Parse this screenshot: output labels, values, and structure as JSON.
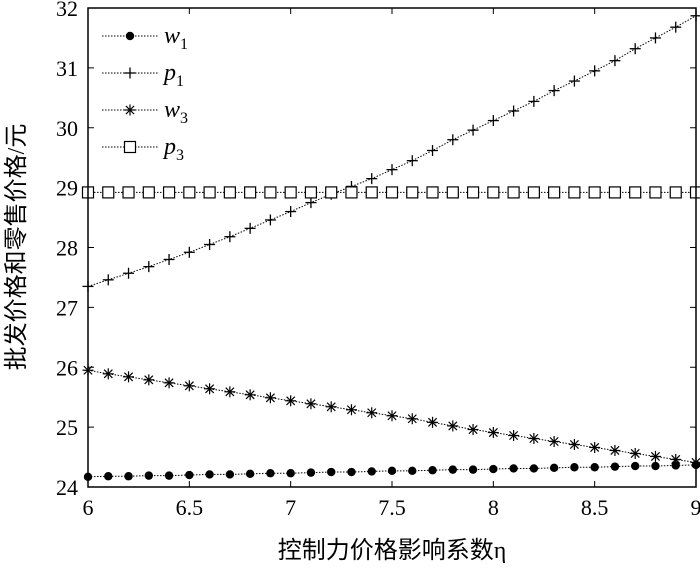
{
  "chart_data": {
    "type": "line",
    "title": "",
    "xlabel": "控制力价格影响系数η",
    "ylabel": "批发价格和零售价格/元",
    "xlim": [
      6,
      9
    ],
    "ylim": [
      24,
      32
    ],
    "xticks": [
      "6",
      "6.5",
      "7",
      "7.5",
      "8",
      "8.5",
      "9"
    ],
    "yticks": [
      "24",
      "25",
      "26",
      "27",
      "28",
      "29",
      "30",
      "31",
      "32"
    ],
    "legend_position": "top-left",
    "x": [
      6.0,
      6.1,
      6.2,
      6.3,
      6.4,
      6.5,
      6.6,
      6.7,
      6.8,
      6.9,
      7.0,
      7.1,
      7.2,
      7.3,
      7.4,
      7.5,
      7.6,
      7.7,
      7.8,
      7.9,
      8.0,
      8.1,
      8.2,
      8.3,
      8.4,
      8.5,
      8.6,
      8.7,
      8.8,
      8.9,
      9.0
    ],
    "series": [
      {
        "name": "w",
        "subscript": "1",
        "marker": "dot",
        "values": [
          24.17,
          24.18,
          24.18,
          24.19,
          24.19,
          24.2,
          24.21,
          24.21,
          24.22,
          24.23,
          24.23,
          24.24,
          24.25,
          24.25,
          24.26,
          24.27,
          24.27,
          24.28,
          24.29,
          24.29,
          24.3,
          24.31,
          24.31,
          24.32,
          24.33,
          24.33,
          24.34,
          24.35,
          24.35,
          24.36,
          24.37
        ]
      },
      {
        "name": "p",
        "subscript": "1",
        "marker": "plus",
        "values": [
          27.35,
          27.46,
          27.57,
          27.68,
          27.8,
          27.92,
          28.05,
          28.18,
          28.32,
          28.46,
          28.6,
          28.75,
          28.89,
          29.02,
          29.15,
          29.3,
          29.45,
          29.62,
          29.8,
          29.96,
          30.12,
          30.28,
          30.44,
          30.62,
          30.78,
          30.95,
          31.12,
          31.32,
          31.5,
          31.68,
          31.87
        ]
      },
      {
        "name": "w",
        "subscript": "3",
        "marker": "star",
        "values": [
          25.95,
          25.89,
          25.84,
          25.79,
          25.74,
          25.69,
          25.64,
          25.59,
          25.54,
          25.49,
          25.44,
          25.39,
          25.34,
          25.29,
          25.24,
          25.19,
          25.14,
          25.08,
          25.02,
          24.96,
          24.91,
          24.86,
          24.81,
          24.76,
          24.71,
          24.66,
          24.61,
          24.56,
          24.51,
          24.46,
          24.41
        ]
      },
      {
        "name": "p",
        "subscript": "3",
        "marker": "square",
        "values": [
          28.92,
          28.92,
          28.92,
          28.92,
          28.92,
          28.92,
          28.92,
          28.92,
          28.92,
          28.92,
          28.92,
          28.92,
          28.92,
          28.92,
          28.92,
          28.92,
          28.92,
          28.92,
          28.92,
          28.92,
          28.92,
          28.92,
          28.92,
          28.92,
          28.92,
          28.92,
          28.92,
          28.92,
          28.92,
          28.92,
          28.92
        ]
      }
    ]
  }
}
